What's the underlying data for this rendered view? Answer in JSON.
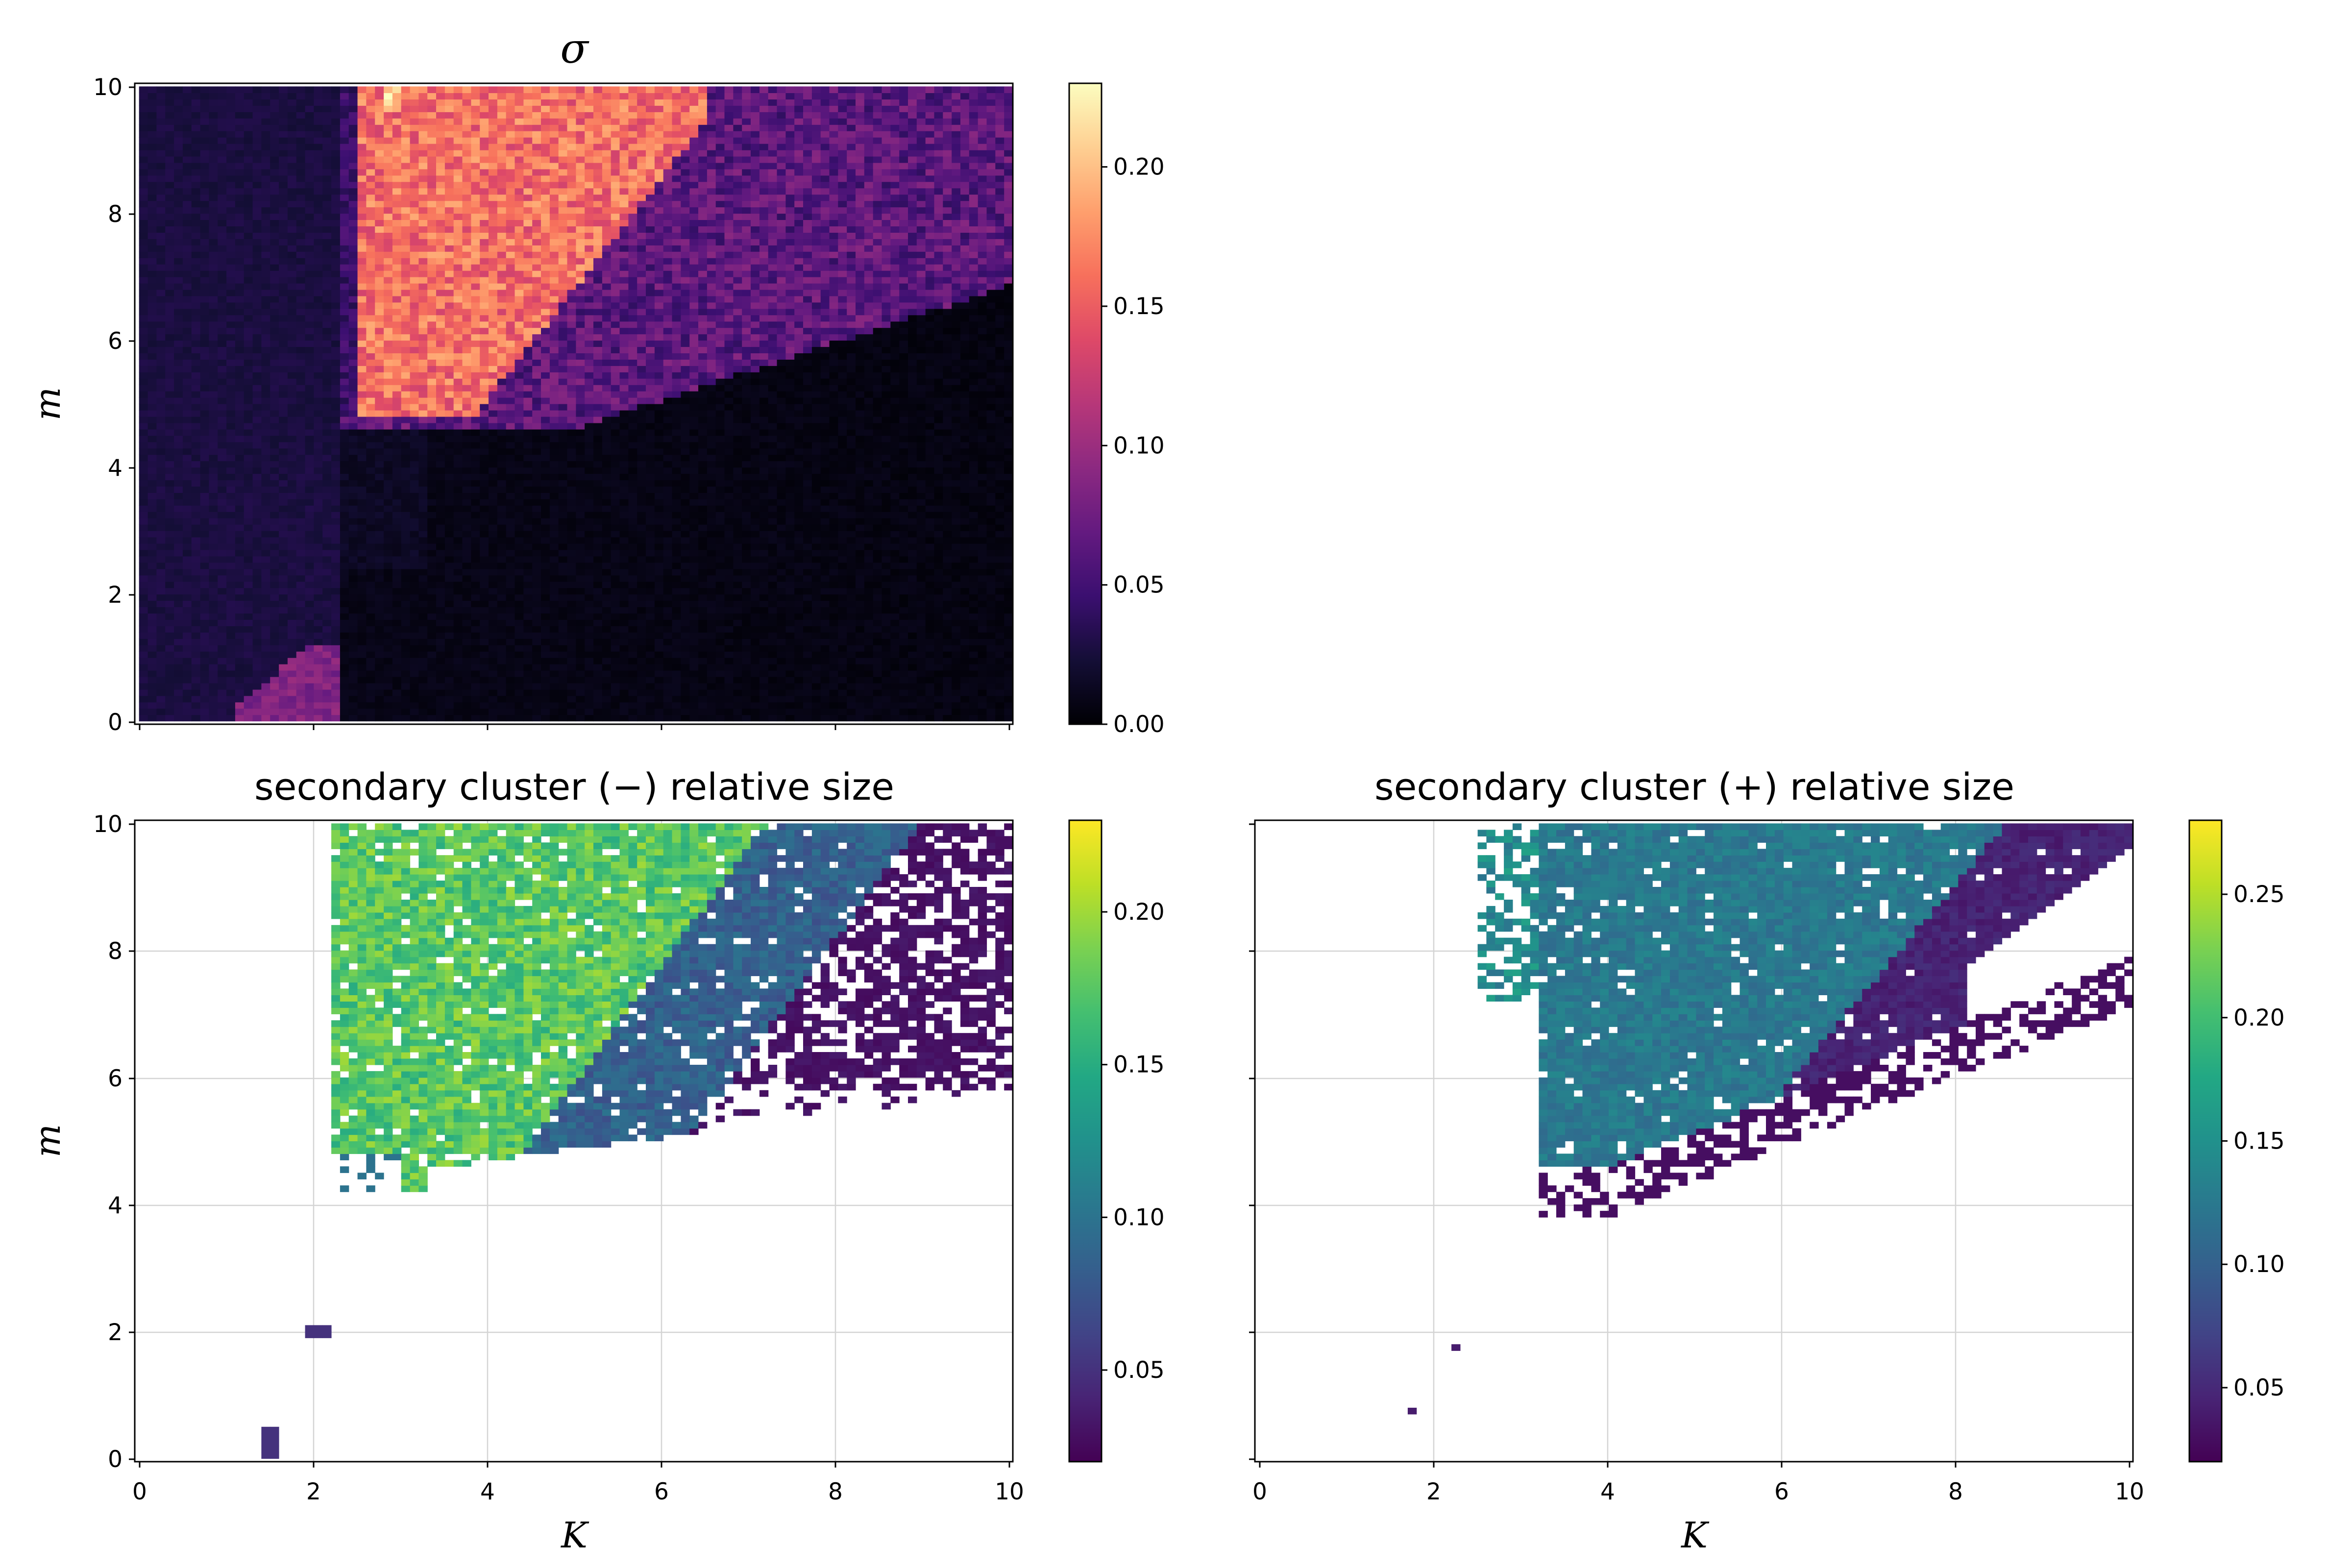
{
  "chart_data": [
    {
      "type": "heatmap",
      "title": "σ",
      "xlabel": "",
      "ylabel": "m",
      "xlim": [
        0,
        10
      ],
      "ylim": [
        0,
        10
      ],
      "x_ticks": [
        "",
        "",
        "",
        "",
        "",
        ""
      ],
      "y_ticks": [
        "0",
        "2",
        "4",
        "6",
        "8",
        "10"
      ],
      "grid": false,
      "colormap": "magma",
      "colorbar": {
        "range": [
          0.0,
          0.23
        ],
        "ticks": [
          "0.00",
          "0.05",
          "0.10",
          "0.15",
          "0.20"
        ],
        "tick_values": [
          0.0,
          0.05,
          0.1,
          0.15,
          0.2
        ]
      },
      "grid_size": [
        100,
        100
      ],
      "regions": [
        {
          "description": "low band K<2.2",
          "value": 0.02
        },
        {
          "description": "ordered region m>5, K 2.4-6",
          "value": 0.17
        },
        {
          "description": "transition wedge K 6-10",
          "value": 0.06
        },
        {
          "description": "lower-right region",
          "value": 0.0
        }
      ]
    },
    {
      "type": "heatmap",
      "title": "secondary cluster (−) relative size",
      "xlabel": "K",
      "ylabel": "m",
      "xlim": [
        0,
        10
      ],
      "ylim": [
        0,
        10
      ],
      "x_ticks": [
        "0",
        "2",
        "4",
        "6",
        "8",
        "10"
      ],
      "y_ticks": [
        "0",
        "2",
        "4",
        "6",
        "8",
        "10"
      ],
      "grid": true,
      "colormap": "viridis",
      "colorbar": {
        "range": [
          0.02,
          0.23
        ],
        "ticks": [
          "0.05",
          "0.10",
          "0.15",
          "0.20"
        ],
        "tick_values": [
          0.05,
          0.1,
          0.15,
          0.2
        ]
      },
      "grid_size": [
        100,
        100
      ],
      "regions": [
        {
          "description": "core region m>5, K 2.3-6",
          "value": 0.17
        },
        {
          "description": "mid region K 5-8",
          "value": 0.08
        },
        {
          "description": "edge region K 7-10",
          "value": 0.03
        }
      ]
    },
    {
      "type": "heatmap",
      "title": "secondary cluster (+) relative size",
      "xlabel": "K",
      "ylabel": "",
      "xlim": [
        0,
        10
      ],
      "ylim": [
        0,
        10
      ],
      "x_ticks": [
        "0",
        "2",
        "4",
        "6",
        "8",
        "10"
      ],
      "y_ticks": [
        "",
        "",
        "",
        "",
        "",
        ""
      ],
      "grid": true,
      "colormap": "viridis",
      "colorbar": {
        "range": [
          0.02,
          0.28
        ],
        "ticks": [
          "0.05",
          "0.10",
          "0.15",
          "0.20",
          "0.25"
        ],
        "tick_values": [
          0.05,
          0.1,
          0.15,
          0.2,
          0.25
        ]
      },
      "grid_size": [
        100,
        100
      ],
      "regions": [
        {
          "description": "core region m>5, K 3.2-8",
          "value": 0.12
        },
        {
          "description": "edge region K 6-10",
          "value": 0.04
        }
      ]
    }
  ]
}
